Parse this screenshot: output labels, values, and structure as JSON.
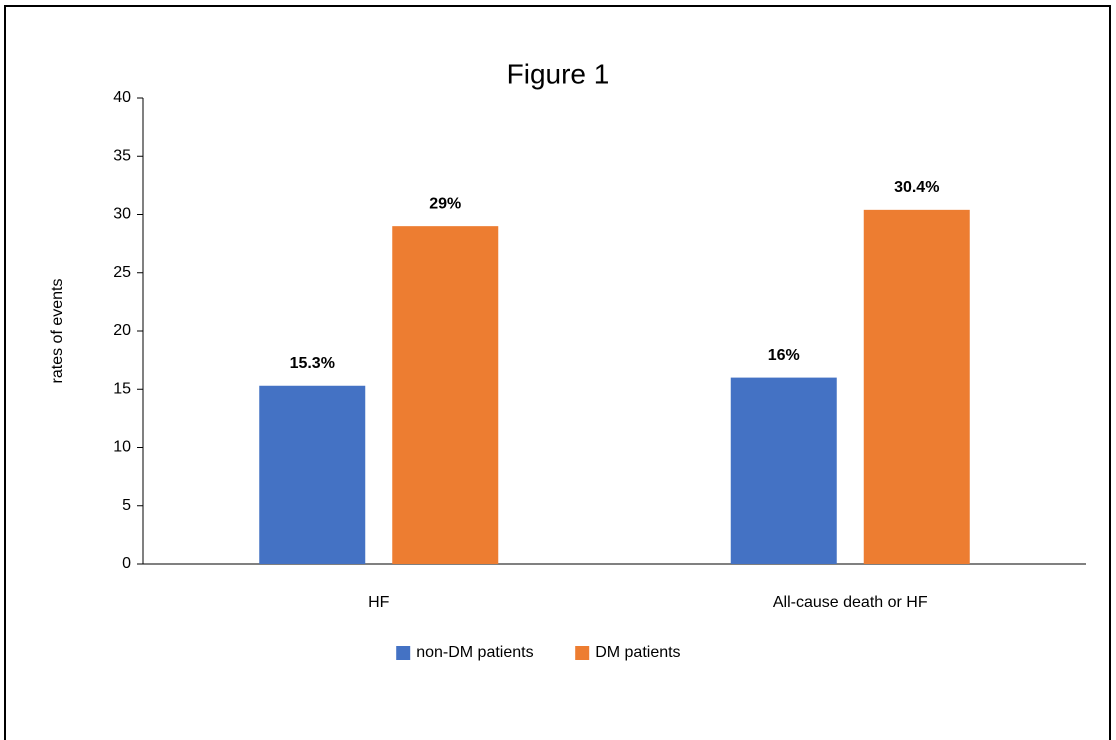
{
  "chart_data": {
    "type": "bar",
    "title": "Figure 1",
    "y_label": "rates of events",
    "categories": [
      "HF",
      "All-cause death or HF"
    ],
    "series": [
      {
        "name": "non-DM patients",
        "color": "#4472c4",
        "values": [
          15.3,
          16
        ],
        "value_labels": [
          "15.3%",
          "16%"
        ]
      },
      {
        "name": "DM patients",
        "color": "#ed7d31",
        "values": [
          29,
          30.4
        ],
        "value_labels": [
          "29%",
          "30.4%"
        ]
      }
    ],
    "ylim": [
      0,
      40
    ],
    "yticks": [
      0,
      5,
      10,
      15,
      20,
      25,
      30,
      35,
      40
    ],
    "grid": false,
    "legend": "bottom"
  }
}
